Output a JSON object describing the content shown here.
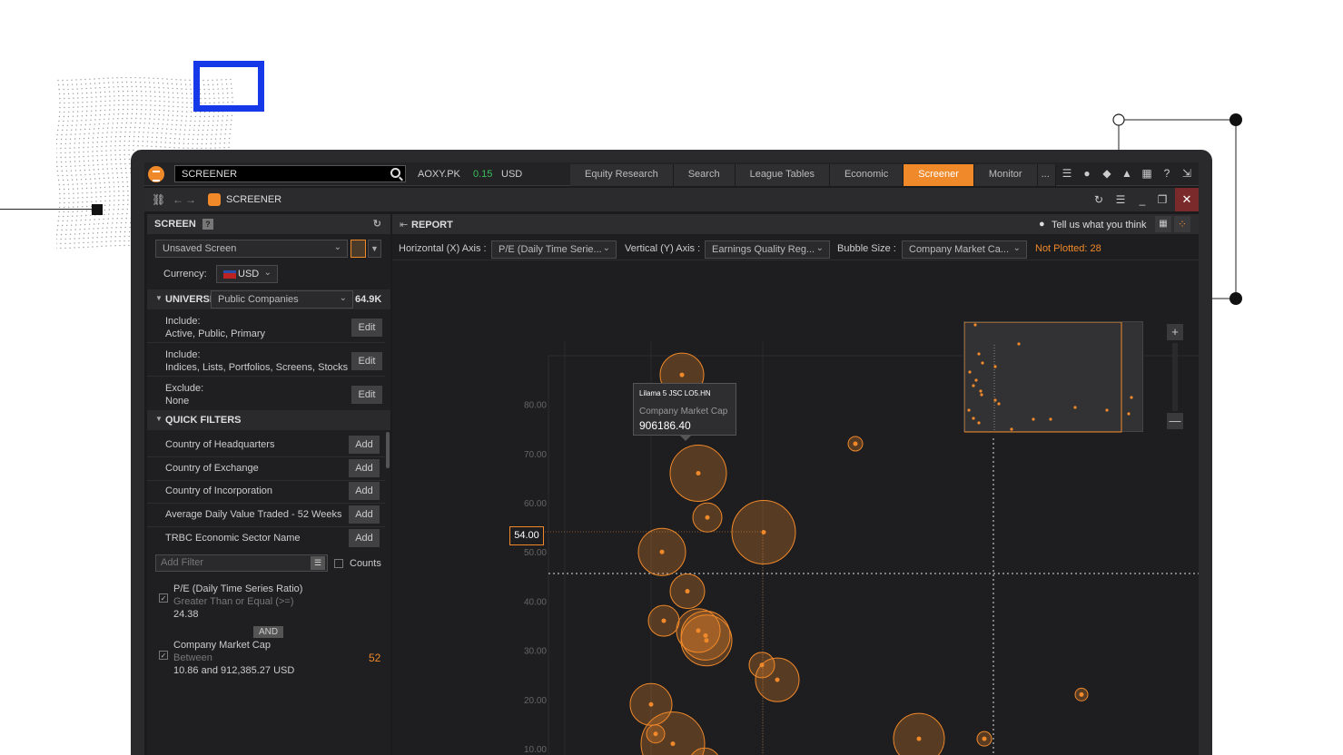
{
  "topbar": {
    "search_value": "SCREENER",
    "ticker_symbol": "AOXY.PK",
    "ticker_change": "0.15",
    "ticker_currency": "USD",
    "tabs": [
      "Equity Research",
      "Search",
      "League Tables",
      "Economic",
      "Screener",
      "Monitor"
    ],
    "more_label": "...",
    "icons": [
      "menu-icon",
      "user-icon",
      "chat-icon",
      "bell-icon",
      "grid-icon",
      "help-icon",
      "expand-icon"
    ]
  },
  "app_bar": {
    "title": "SCREENER",
    "icons": [
      "link-icon",
      "back-icon",
      "forward-icon",
      "refresh-icon",
      "menu-icon",
      "minimize-icon",
      "restore-icon",
      "close-icon"
    ],
    "close_label": "✕"
  },
  "screen_panel": {
    "heading": "SCREEN",
    "help_label": "?",
    "screen_select": "Unsaved Screen",
    "currency_label": "Currency:",
    "currency_value": "USD",
    "universe_label": "UNIVERSE",
    "universe_select": "Public Companies",
    "universe_count": "64.9K",
    "criteria": [
      {
        "label": "Include:",
        "value": "Active, Public, Primary",
        "button": "Edit"
      },
      {
        "label": "Include:",
        "value": "Indices, Lists, Portfolios, Screens, Stocks",
        "button": "Edit"
      },
      {
        "label": "Exclude:",
        "value": "None",
        "button": "Edit"
      }
    ],
    "quick_filters_label": "QUICK FILTERS",
    "quick_filters": [
      {
        "label": "Country of Headquarters",
        "button": "Add"
      },
      {
        "label": "Country of Exchange",
        "button": "Add"
      },
      {
        "label": "Country of Incorporation",
        "button": "Add"
      },
      {
        "label": "Average Daily Value Traded - 52 Weeks",
        "button": "Add"
      },
      {
        "label": "TRBC Economic Sector Name",
        "button": "Add"
      }
    ],
    "add_filter_placeholder": "Add Filter",
    "counts_label": "Counts",
    "filters": [
      {
        "name": "P/E (Daily Time Series Ratio)",
        "condition": "Greater Than or Equal (>=)",
        "value": "24.38",
        "count": ""
      },
      {
        "name": "Company Market Cap",
        "condition": "Between",
        "value": "10.86 and 912,385.27 USD",
        "count": "52"
      }
    ],
    "and_label": "AND"
  },
  "report_panel": {
    "heading": "REPORT",
    "feedback_label": "Tell us what you think",
    "x_axis_label": "Horizontal (X) Axis :",
    "x_axis_value": "P/E (Daily Time Serie...",
    "y_axis_label": "Vertical (Y) Axis :",
    "y_axis_value": "Earnings Quality Reg...",
    "bubble_label": "Bubble Size :",
    "bubble_value": "Company Market Ca...",
    "not_plotted": "Not Plotted: 28",
    "tooltip": {
      "name": "Lilama 5 JSC LO5.HN",
      "metric": "Company Market Cap",
      "value": "906186.40"
    },
    "crosshair_value": "54.00",
    "zoom_in": "+",
    "zoom_out": "—"
  },
  "chart_data": {
    "type": "scatter",
    "xlabel": "",
    "ylabel": "",
    "y_ticks": [
      "10.00",
      "20.00",
      "30.00",
      "40.00",
      "50.00",
      "60.00",
      "70.00",
      "80.00"
    ],
    "ylim": [
      5,
      90
    ],
    "bubbles": [
      {
        "y": 86,
        "size": 24
      },
      {
        "y": 66,
        "size": 31
      },
      {
        "y": 57,
        "size": 16
      },
      {
        "y": 54,
        "size": 35
      },
      {
        "y": 50,
        "size": 26
      },
      {
        "y": 72,
        "size": 8
      },
      {
        "y": 42,
        "size": 19
      },
      {
        "y": 36,
        "size": 17
      },
      {
        "y": 34,
        "size": 24
      },
      {
        "y": 33,
        "size": 27
      },
      {
        "y": 32,
        "size": 28
      },
      {
        "y": 27,
        "size": 14
      },
      {
        "y": 24,
        "size": 24
      },
      {
        "y": 19,
        "size": 23
      },
      {
        "y": 13,
        "size": 10
      },
      {
        "y": 11,
        "size": 35
      },
      {
        "y": 21,
        "size": 7
      },
      {
        "y": 12,
        "size": 28
      },
      {
        "y": 12,
        "size": 8
      },
      {
        "y": 7,
        "size": 17
      }
    ]
  }
}
